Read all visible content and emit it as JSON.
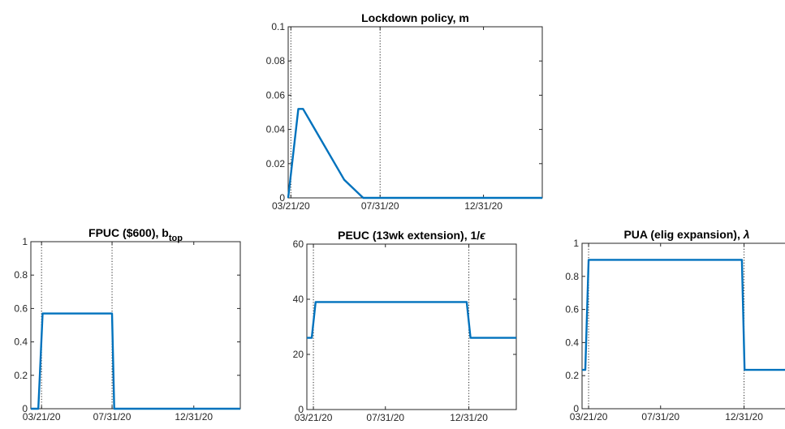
{
  "figure_colors": {
    "series": "#0072BD",
    "axes": "#262626"
  },
  "chart_data": [
    {
      "id": "lockdown",
      "type": "line",
      "title": {
        "main": "Lockdown policy, m",
        "sub": "",
        "tail": ""
      },
      "xlabel": "",
      "ylabel": "",
      "x_ticks": [
        "03/21/20",
        "07/31/20",
        "12/31/20"
      ],
      "x_tick_dates": [
        "2020-03-21",
        "2020-07-31",
        "2020-12-31"
      ],
      "xlim": [
        "2020-03-17",
        "2021-03-28"
      ],
      "ylim": [
        0,
        0.1
      ],
      "y_ticks": [
        "0",
        "0.02",
        "0.04",
        "0.06",
        "0.08",
        "0.1"
      ],
      "y_tick_values": [
        0,
        0.02,
        0.04,
        0.06,
        0.08,
        0.1
      ],
      "vlines": [
        "2020-03-21",
        "2020-07-31"
      ],
      "grid": false,
      "series": [
        {
          "x": [
            "2020-03-17",
            "2020-04-01",
            "2020-04-08",
            "2020-06-08",
            "2020-07-06",
            "2020-07-31",
            "2021-03-28"
          ],
          "values": [
            0.0,
            0.052,
            0.052,
            0.0105,
            0.0,
            0.0,
            0.0
          ]
        }
      ]
    },
    {
      "id": "fpuc",
      "type": "line",
      "title": {
        "main": "FPUC ($600), b",
        "sub": "top",
        "tail": ""
      },
      "xlabel": "",
      "ylabel": "",
      "x_ticks": [
        "03/21/20",
        "07/31/20",
        "12/31/20"
      ],
      "x_tick_dates": [
        "2020-03-21",
        "2020-07-31",
        "2020-12-31"
      ],
      "xlim": [
        "2020-03-01",
        "2021-03-28"
      ],
      "ylim": [
        0,
        1
      ],
      "y_ticks": [
        "0",
        "0.2",
        "0.4",
        "0.6",
        "0.8",
        "1"
      ],
      "y_tick_values": [
        0,
        0.2,
        0.4,
        0.6,
        0.8,
        1
      ],
      "vlines": [
        "2020-03-21",
        "2020-07-31"
      ],
      "grid": false,
      "series": [
        {
          "x": [
            "2020-03-01",
            "2020-03-15",
            "2020-03-23",
            "2020-07-31",
            "2020-08-04",
            "2021-03-28"
          ],
          "values": [
            0.0,
            0.0,
            0.57,
            0.57,
            0.0,
            0.0
          ]
        }
      ]
    },
    {
      "id": "peuc",
      "type": "line",
      "title": {
        "main": "PEUC (13wk extension), 1/",
        "sub": "",
        "tail": "ϵ"
      },
      "xlabel": "",
      "ylabel": "",
      "x_ticks": [
        "03/21/20",
        "07/31/20",
        "12/31/20"
      ],
      "x_tick_dates": [
        "2020-03-21",
        "2020-07-31",
        "2020-12-31"
      ],
      "xlim": [
        "2020-03-09",
        "2021-03-28"
      ],
      "ylim": [
        0,
        60
      ],
      "y_ticks": [
        "0",
        "20",
        "40",
        "60"
      ],
      "y_tick_values": [
        0,
        20,
        40,
        60
      ],
      "vlines": [
        "2020-03-21",
        "2020-12-31"
      ],
      "grid": false,
      "series": [
        {
          "x": [
            "2020-03-09",
            "2020-03-18",
            "2020-03-25",
            "2020-12-27",
            "2021-01-03",
            "2021-03-28"
          ],
          "values": [
            26,
            26,
            39,
            39,
            26,
            26
          ]
        }
      ]
    },
    {
      "id": "pua",
      "type": "line",
      "title": {
        "main": "PUA (elig expansion), ",
        "sub": "",
        "tail": "λ"
      },
      "xlabel": "",
      "ylabel": "",
      "x_ticks": [
        "03/21/20",
        "07/31/20",
        "12/31/20"
      ],
      "x_tick_dates": [
        "2020-03-21",
        "2020-07-31",
        "2020-12-31"
      ],
      "xlim": [
        "2020-03-09",
        "2021-03-28"
      ],
      "ylim": [
        0,
        1
      ],
      "y_ticks": [
        "0",
        "0.2",
        "0.4",
        "0.6",
        "0.8",
        "1"
      ],
      "y_tick_values": [
        0,
        0.2,
        0.4,
        0.6,
        0.8,
        1
      ],
      "vlines": [
        "2020-03-21",
        "2020-12-31"
      ],
      "grid": false,
      "series": [
        {
          "x": [
            "2020-03-09",
            "2020-03-15",
            "2020-03-21",
            "2020-12-27",
            "2021-01-01",
            "2021-03-28"
          ],
          "values": [
            0.235,
            0.235,
            0.9,
            0.9,
            0.235,
            0.235
          ]
        }
      ]
    }
  ]
}
